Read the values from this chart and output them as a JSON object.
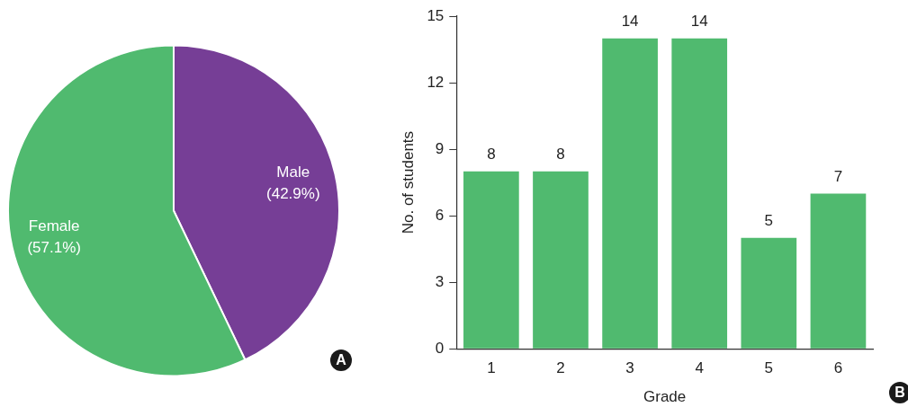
{
  "chart_data": [
    {
      "type": "pie",
      "categories": [
        "Male",
        "Female"
      ],
      "values": [
        42.9,
        57.1
      ],
      "colors": [
        "#763e96",
        "#50ba6f"
      ],
      "value_labels": [
        "(42.9%)",
        "(57.1%)"
      ],
      "legend": false,
      "annotations": [
        "A"
      ]
    },
    {
      "type": "bar",
      "categories": [
        "1",
        "2",
        "3",
        "4",
        "5",
        "6"
      ],
      "values": [
        8,
        8,
        14,
        14,
        5,
        7
      ],
      "color": "#50ba6f",
      "xlabel": "Grade",
      "ylabel": "No. of students",
      "ylim": [
        0,
        15
      ],
      "yticks": [
        0,
        3,
        6,
        9,
        12,
        15
      ],
      "grid": false,
      "legend": false,
      "data_labels": true,
      "annotations": [
        "B"
      ]
    }
  ]
}
